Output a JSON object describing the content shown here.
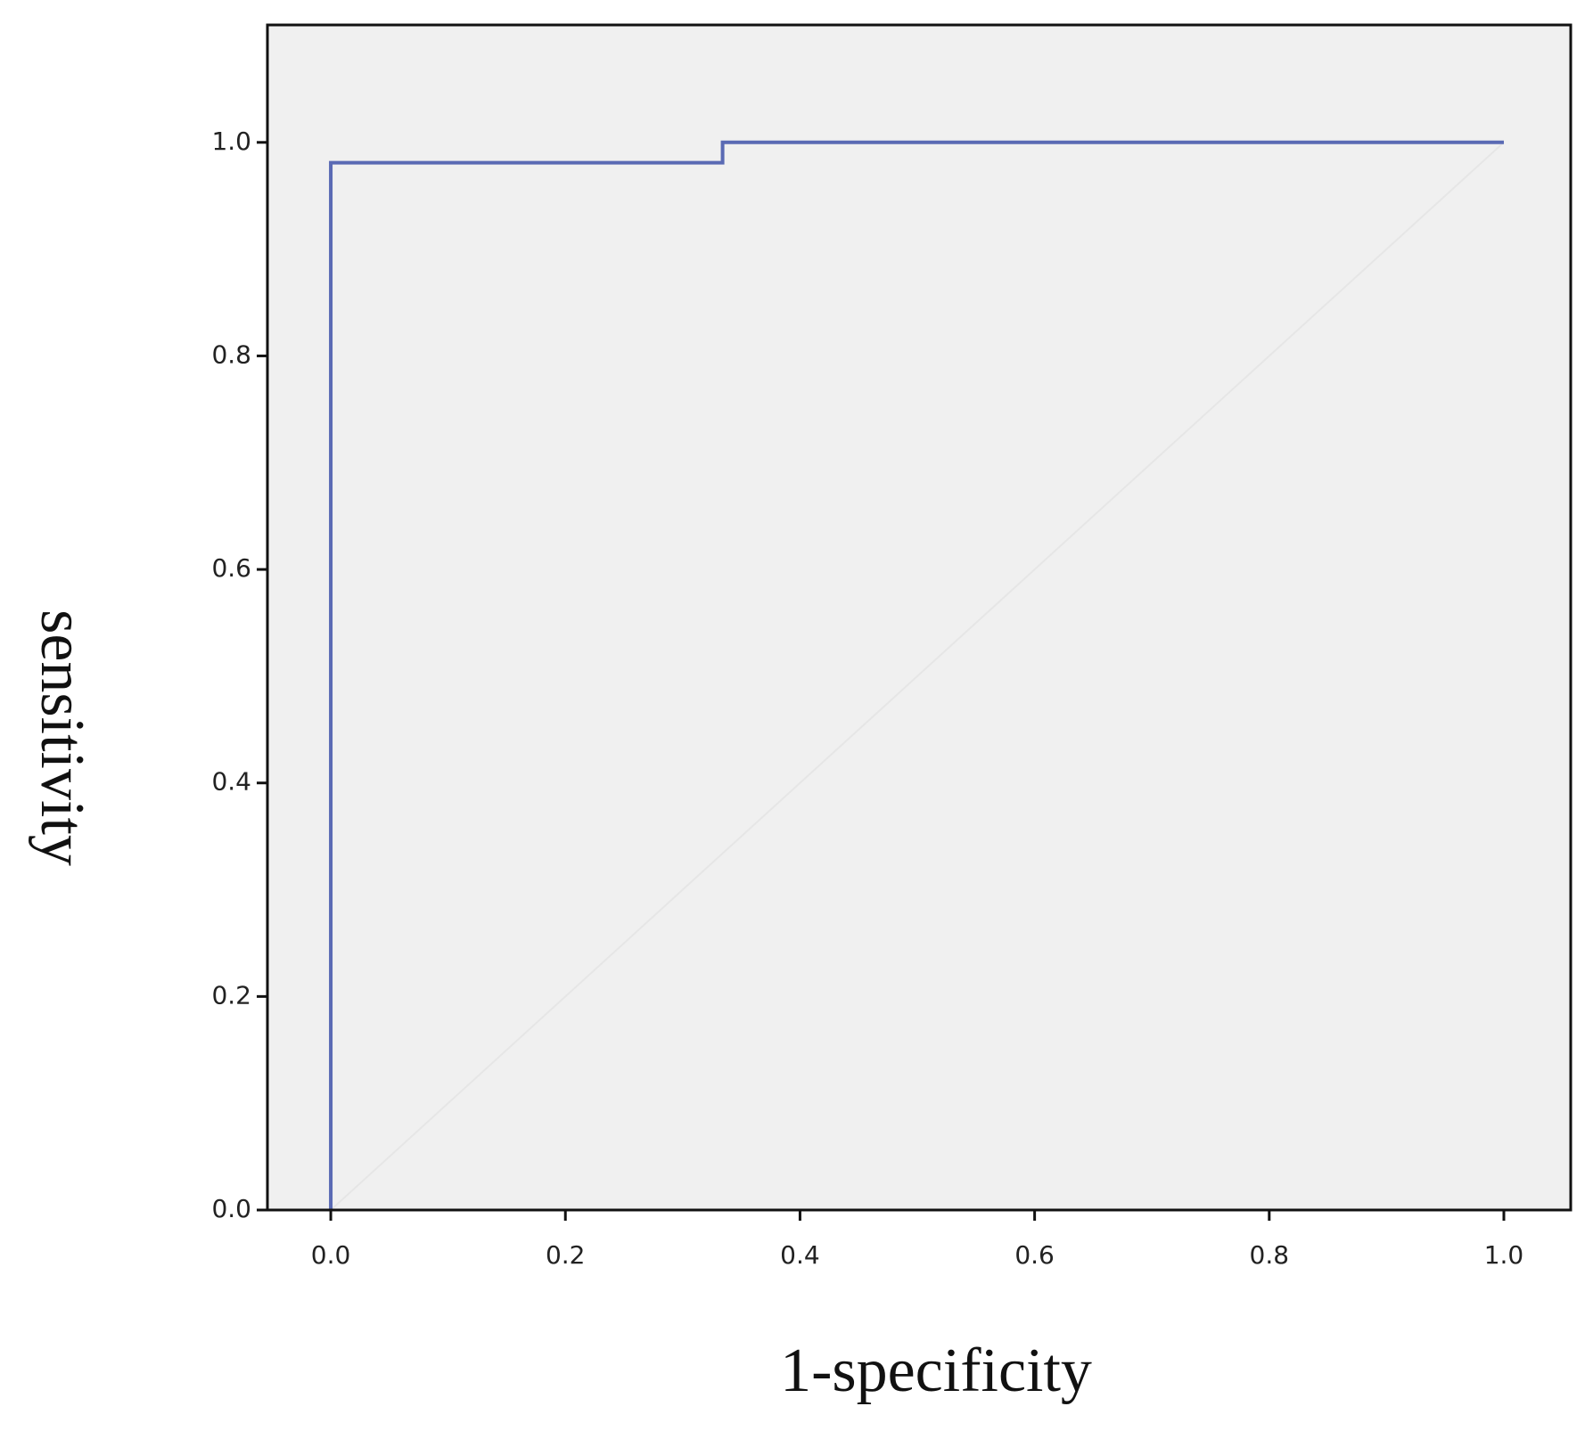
{
  "chart_data": {
    "type": "line",
    "x_label": "1-specificity",
    "y_label": "sensitivity",
    "series": [
      {
        "color": "#5a6ab4",
        "x": [
          0,
          0,
          0.334,
          0.334,
          1
        ],
        "values": [
          0,
          0.981,
          0.981,
          1,
          1
        ]
      },
      {
        "color": "#e6e6e6",
        "x": [
          0,
          1
        ],
        "values": [
          0,
          1
        ]
      }
    ],
    "xlim": [
      -0.054,
      1.057
    ],
    "ylim": [
      0,
      1.11
    ],
    "xticks": [
      {
        "value": 0,
        "label": "0.0"
      },
      {
        "value": 0.2,
        "label": "0.2"
      },
      {
        "value": 0.4,
        "label": "0.4"
      },
      {
        "value": 0.6,
        "label": "0.6"
      },
      {
        "value": 0.8,
        "label": "0.8"
      },
      {
        "value": 1,
        "label": "1.0"
      }
    ],
    "yticks": [
      {
        "value": 0,
        "label": "0.0"
      },
      {
        "value": 0.2,
        "label": "0.2"
      },
      {
        "value": 0.4,
        "label": "0.4"
      },
      {
        "value": 0.6,
        "label": "0.6"
      },
      {
        "value": 0.8,
        "label": "0.8"
      },
      {
        "value": 1,
        "label": "1.0"
      }
    ],
    "background": "#f0f0f0"
  }
}
